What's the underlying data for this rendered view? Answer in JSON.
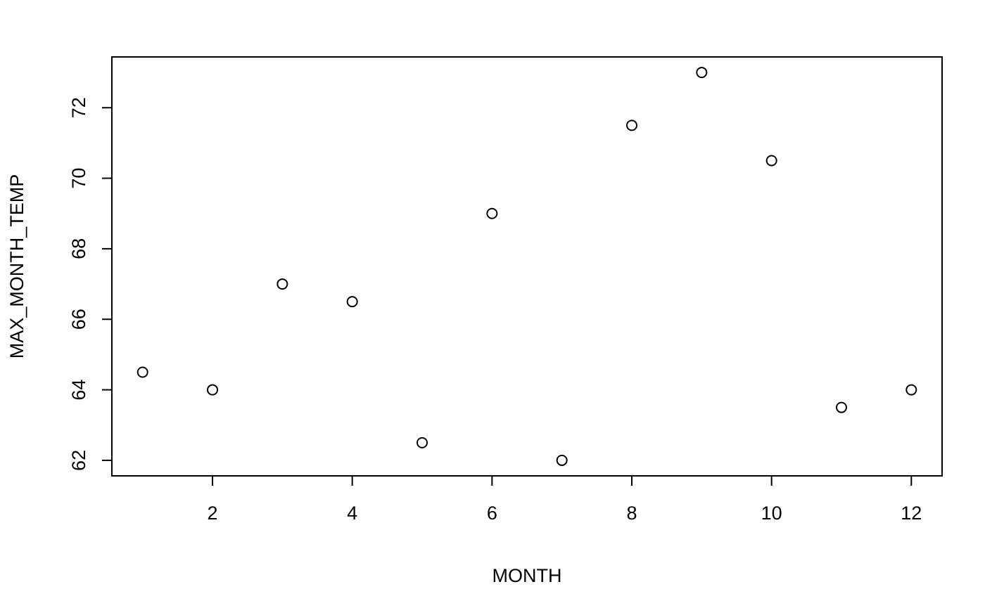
{
  "chart_data": {
    "type": "scatter",
    "title": "",
    "xlabel": "MONTH",
    "ylabel": "MAX_MONTH_TEMP",
    "x": [
      1,
      2,
      3,
      4,
      5,
      6,
      7,
      8,
      9,
      10,
      11,
      12
    ],
    "y": [
      64.5,
      64,
      67,
      66.5,
      62.5,
      69,
      62,
      71.5,
      73,
      70.5,
      63.5,
      64
    ],
    "xlim": [
      0.56,
      12.44
    ],
    "ylim": [
      61.56,
      73.44
    ],
    "x_ticks": [
      2,
      4,
      6,
      8,
      10,
      12
    ],
    "y_ticks": [
      62,
      64,
      66,
      68,
      70,
      72
    ],
    "grid": false,
    "legend": "none",
    "marker": "open-circle",
    "colors": {
      "points": "#000000",
      "axes": "#000000",
      "background": "#ffffff"
    }
  }
}
